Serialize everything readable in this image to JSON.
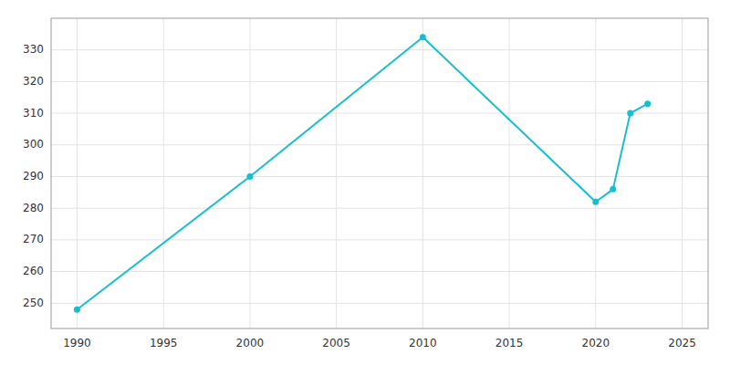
{
  "chart_data": {
    "type": "line",
    "x": [
      1990,
      2000,
      2010,
      2020,
      2021,
      2022,
      2023
    ],
    "values": [
      248,
      290,
      334,
      282,
      286,
      310,
      313
    ],
    "color": "#17BECF",
    "marker": "circle",
    "xlim": [
      1988.5,
      2026.5
    ],
    "ylim": [
      242,
      340
    ],
    "xticks": [
      1990,
      1995,
      2000,
      2005,
      2010,
      2015,
      2020,
      2025
    ],
    "yticks": [
      250,
      260,
      270,
      280,
      290,
      300,
      310,
      320,
      330
    ],
    "grid": true
  }
}
